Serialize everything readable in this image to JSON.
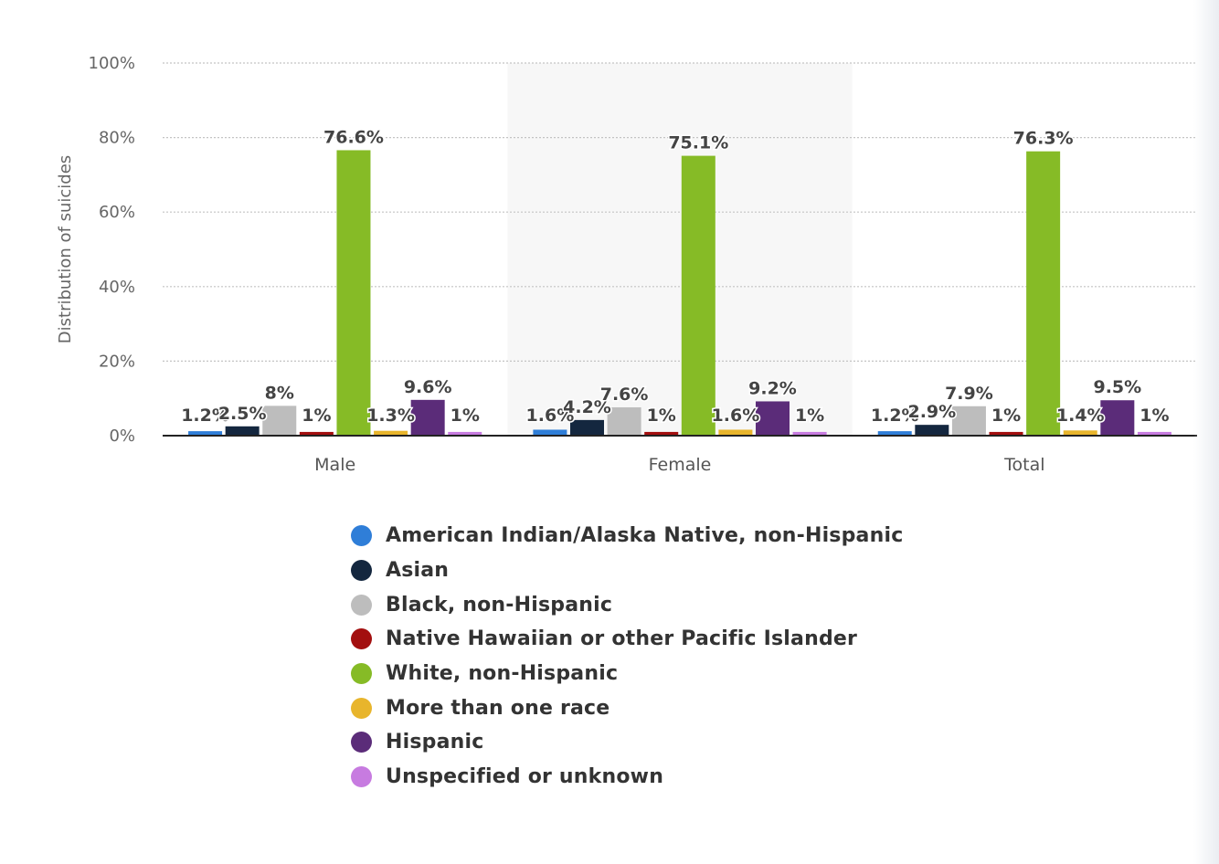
{
  "chart_data": {
    "type": "bar",
    "title": "",
    "xlabel": "",
    "ylabel": "Distribution of suicides",
    "ylim": [
      0,
      100
    ],
    "yticks": [
      "0%",
      "20%",
      "40%",
      "60%",
      "80%",
      "100%"
    ],
    "ytick_values": [
      0,
      20,
      40,
      60,
      80,
      100
    ],
    "grid": true,
    "legend_position": "bottom",
    "categories": [
      "Male",
      "Female",
      "Total"
    ],
    "highlighted_category": "Female",
    "series": [
      {
        "name": "American Indian/Alaska Native, non-Hispanic",
        "color": "#2f7ed8",
        "values": [
          1.2,
          1.6,
          1.2
        ],
        "labels": [
          "1.2%",
          "1.6%",
          "1.2%"
        ]
      },
      {
        "name": "Asian",
        "color": "#14273f",
        "values": [
          2.5,
          4.2,
          2.9
        ],
        "labels": [
          "2.5%",
          "4.2%",
          "2.9%"
        ]
      },
      {
        "name": "Black, non-Hispanic",
        "color": "#bdbdbd",
        "values": [
          8,
          7.6,
          7.9
        ],
        "labels": [
          "8%",
          "7.6%",
          "7.9%"
        ]
      },
      {
        "name": "Native Hawaiian or other Pacific Islander",
        "color": "#a30f0f",
        "values": [
          1,
          1,
          1
        ],
        "labels": [
          "1%",
          "1%",
          "1%"
        ]
      },
      {
        "name": "White, non-Hispanic",
        "color": "#86bb26",
        "values": [
          76.6,
          75.1,
          76.3
        ],
        "labels": [
          "76.6%",
          "75.1%",
          "76.3%"
        ]
      },
      {
        "name": "More than one race",
        "color": "#e8b52c",
        "values": [
          1.3,
          1.6,
          1.4
        ],
        "labels": [
          "1.3%",
          "1.6%",
          "1.4%"
        ]
      },
      {
        "name": "Hispanic",
        "color": "#5b2c79",
        "values": [
          9.6,
          9.2,
          9.5
        ],
        "labels": [
          "9.6%",
          "9.2%",
          "9.5%"
        ]
      },
      {
        "name": "Unspecified or unknown",
        "color": "#c77be0",
        "values": [
          1,
          1,
          1
        ],
        "labels": [
          "1%",
          "1%",
          "1%"
        ]
      }
    ]
  }
}
